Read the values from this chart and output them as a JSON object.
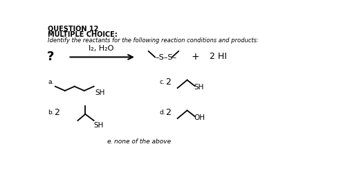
{
  "bg_color": "#ffffff",
  "title": "QUESTION 12",
  "subtitle": "MULTIPLE CHOICE:",
  "question_text": "Identify the reactants for the following reaction conditions and products:",
  "question_mark": "?",
  "reagent_line1": "I₂, H₂O",
  "plus": "+",
  "product_right": "2 HI",
  "label_a": "a.",
  "label_b": "b.",
  "label_c": "c.",
  "label_d": "d.",
  "label_e": "e.",
  "text_e": "none of the above",
  "num_b": "2",
  "num_c": "2",
  "num_d": "2",
  "sh": "SH",
  "oh": "OH",
  "ss_label": "S–S"
}
